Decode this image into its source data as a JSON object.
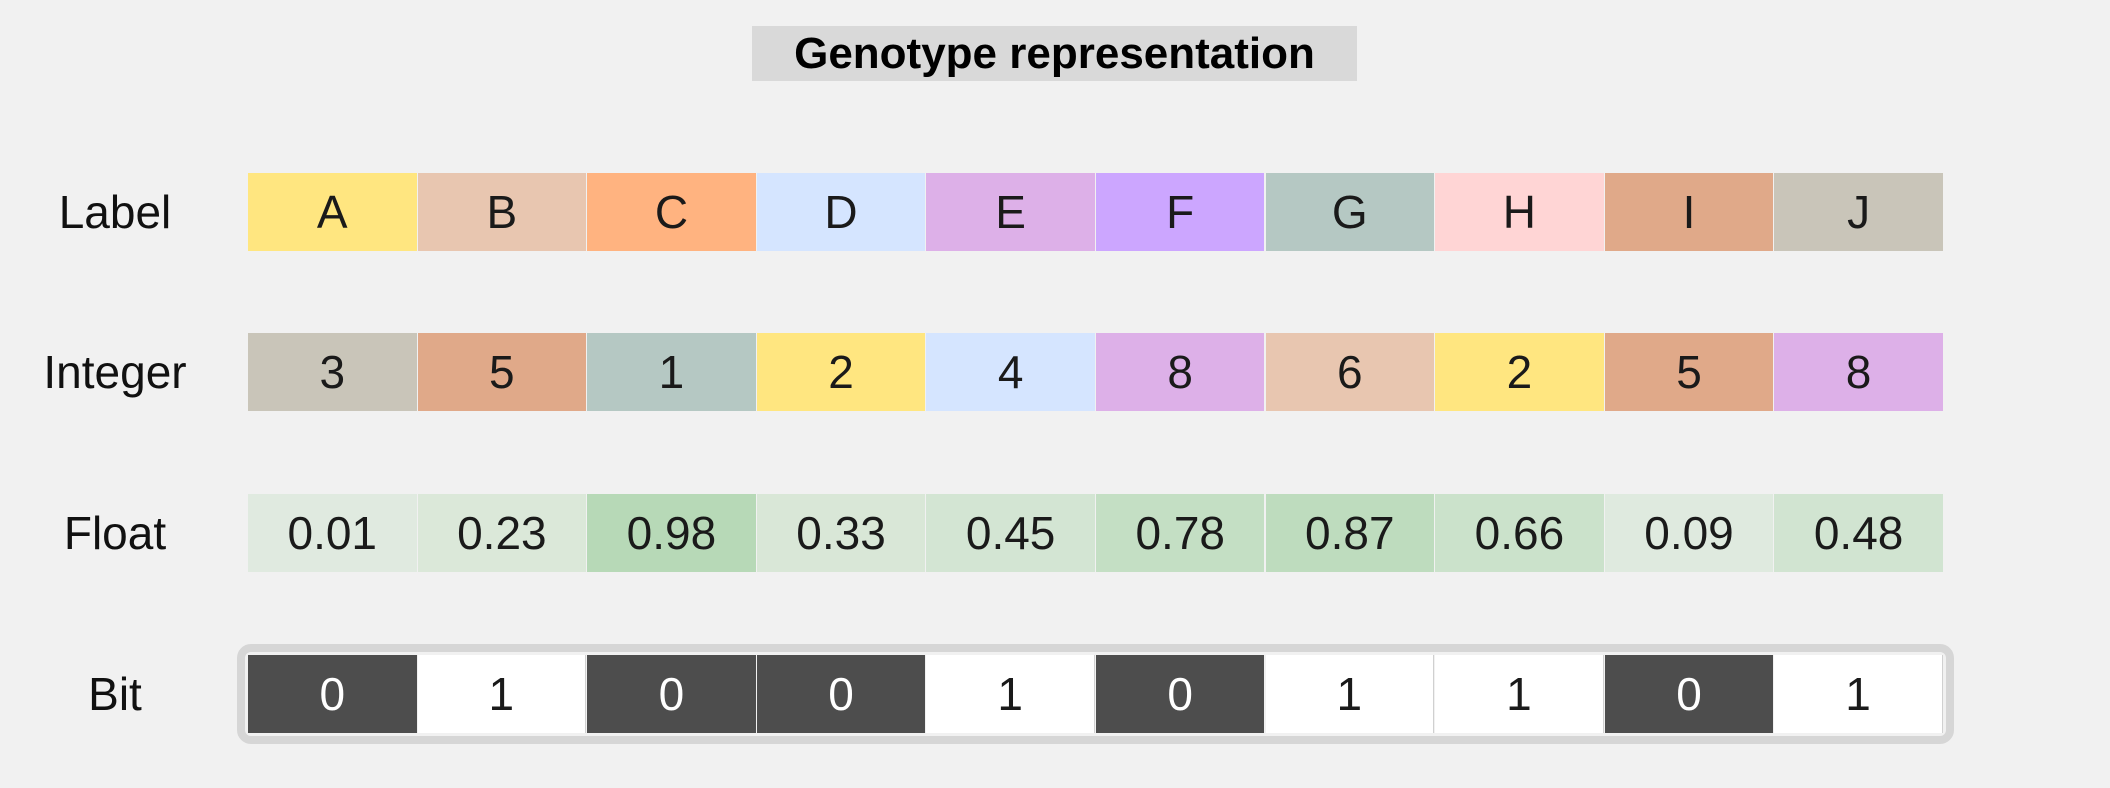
{
  "title": "Genotype representation",
  "rows": [
    {
      "label": "Label",
      "cells": [
        {
          "text": "A",
          "color": "#ffe680"
        },
        {
          "text": "B",
          "color": "#e8c6b0"
        },
        {
          "text": "C",
          "color": "#ffb380"
        },
        {
          "text": "D",
          "color": "#d5e5ff"
        },
        {
          "text": "E",
          "color": "#ddb0e8"
        },
        {
          "text": "F",
          "color": "#cca6ff"
        },
        {
          "text": "G",
          "color": "#b5c8c3"
        },
        {
          "text": "H",
          "color": "#ffd5d5"
        },
        {
          "text": "I",
          "color": "#e0a989"
        },
        {
          "text": "J",
          "color": "#c9c5b9"
        }
      ]
    },
    {
      "label": "Integer",
      "cells": [
        {
          "text": "3",
          "color": "#c9c5b9"
        },
        {
          "text": "5",
          "color": "#e0a989"
        },
        {
          "text": "1",
          "color": "#b5c8c3"
        },
        {
          "text": "2",
          "color": "#ffe680"
        },
        {
          "text": "4",
          "color": "#d5e5ff"
        },
        {
          "text": "8",
          "color": "#ddb0e8"
        },
        {
          "text": "6",
          "color": "#e8c6b0"
        },
        {
          "text": "2",
          "color": "#ffe680"
        },
        {
          "text": "5",
          "color": "#e0a989"
        },
        {
          "text": "8",
          "color": "#ddb0e8"
        }
      ]
    },
    {
      "label": "Float",
      "cells": [
        {
          "text": "0.01",
          "color": "#e0eae0"
        },
        {
          "text": "0.23",
          "color": "#dbe8d9"
        },
        {
          "text": "0.98",
          "color": "#b7d9b7"
        },
        {
          "text": "0.33",
          "color": "#d9e7d7"
        },
        {
          "text": "0.45",
          "color": "#d3e5d3"
        },
        {
          "text": "0.78",
          "color": "#c4dfc4"
        },
        {
          "text": "0.87",
          "color": "#bedcbe"
        },
        {
          "text": "0.66",
          "color": "#cbe2cb"
        },
        {
          "text": "0.09",
          "color": "#dfeadf"
        },
        {
          "text": "0.48",
          "color": "#d1e4d1"
        }
      ]
    },
    {
      "label": "Bit",
      "cells": [
        {
          "text": "0",
          "color": "#4d4d4d"
        },
        {
          "text": "1",
          "color": "#ffffff"
        },
        {
          "text": "0",
          "color": "#4d4d4d"
        },
        {
          "text": "0",
          "color": "#4d4d4d"
        },
        {
          "text": "1",
          "color": "#ffffff"
        },
        {
          "text": "0",
          "color": "#4d4d4d"
        },
        {
          "text": "1",
          "color": "#ffffff"
        },
        {
          "text": "1",
          "color": "#ffffff"
        },
        {
          "text": "0",
          "color": "#4d4d4d"
        },
        {
          "text": "1",
          "color": "#ffffff"
        }
      ]
    }
  ]
}
